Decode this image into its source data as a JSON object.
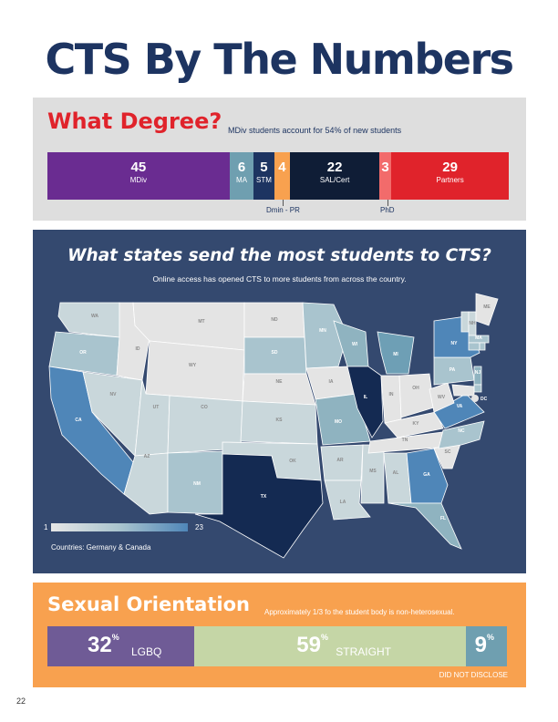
{
  "title": "CTS By The Numbers",
  "degree": {
    "title": "What Degree?",
    "subtitle": "MDiv students account for 54% of new students",
    "callout_dmin": "Dmin - PR",
    "callout_phd": "PhD"
  },
  "map": {
    "title": "What states send the most students to CTS?",
    "subtitle": "Online access has opened CTS to more students from across the country.",
    "legend_min": "1",
    "legend_max": "23",
    "countries_note": "Countries: Germany & Canada"
  },
  "orientation": {
    "title": "Sexual Orientation",
    "subtitle": "Approximately 1/3 fo the student body is non-heterosexual.",
    "not_disclosed_label": "DID NOT DISCLOSE",
    "pct_sign": "%"
  },
  "page_number": "22",
  "colors": {
    "navy": "#1d3461",
    "red": "#e0232b",
    "map_bg": "#34496f",
    "orange": "#f8a14f"
  },
  "chart_data": [
    {
      "type": "bar",
      "orientation": "stacked-horizontal",
      "title": "What Degree?",
      "categories": [
        "MDiv",
        "MA",
        "STM",
        "Dmin - PR",
        "SAL/Cert",
        "PhD",
        "Partners"
      ],
      "values": [
        45,
        6,
        5,
        4,
        22,
        3,
        29
      ],
      "colors": [
        "#6a2c91",
        "#6f9fb0",
        "#1d3461",
        "#f8a14f",
        "#0f1d36",
        "#f26b6b",
        "#e0232b"
      ]
    },
    {
      "type": "heatmap",
      "subtype": "choropleth",
      "title": "What states send the most students to CTS?",
      "value_range": [
        1,
        23
      ],
      "states": [
        "WA",
        "OR",
        "CA",
        "ID",
        "NV",
        "MT",
        "WY",
        "UT",
        "AZ",
        "CO",
        "NM",
        "ND",
        "SD",
        "NE",
        "KS",
        "OK",
        "TX",
        "MN",
        "IA",
        "MO",
        "AR",
        "LA",
        "WI",
        "IL",
        "MS",
        "MI",
        "IN",
        "KY",
        "TN",
        "AL",
        "OH",
        "GA",
        "FL",
        "SC",
        "NC",
        "VA",
        "WV",
        "PA",
        "NY",
        "NJ",
        "DE",
        "MD",
        "DC",
        "VT",
        "NH",
        "ME",
        "MA",
        "CT",
        "RI"
      ]
    },
    {
      "type": "bar",
      "orientation": "stacked-horizontal",
      "title": "Sexual Orientation",
      "categories": [
        "LGBQ",
        "STRAIGHT",
        "DID NOT DISCLOSE"
      ],
      "values": [
        32,
        59,
        9
      ],
      "colors": [
        "#6f5b96",
        "#c5d6a6",
        "#6f9fb0"
      ]
    }
  ]
}
